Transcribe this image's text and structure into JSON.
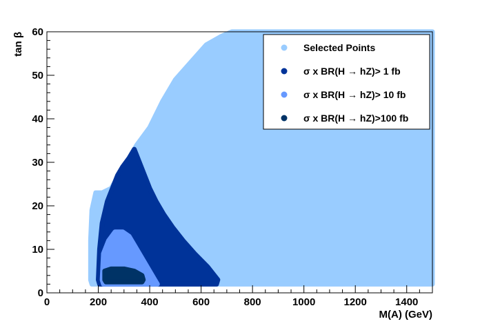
{
  "chart_data": {
    "type": "scatter",
    "xlabel": "M(A) (GeV)",
    "ylabel": "tan β",
    "xlim": [
      0,
      1500
    ],
    "ylim": [
      0,
      60
    ],
    "x_ticks": [
      "0",
      "200",
      "400",
      "600",
      "800",
      "1000",
      "1200",
      "1400"
    ],
    "y_ticks": [
      "0",
      "10",
      "20",
      "30",
      "40",
      "50",
      "60"
    ],
    "legend_position": "top-right",
    "series": [
      {
        "name": "Selected Points",
        "color": "#99ccff",
        "region_outline": [
          [
            170,
            3
          ],
          [
            170,
            12
          ],
          [
            175,
            19
          ],
          [
            190,
            23
          ],
          [
            215,
            23
          ],
          [
            250,
            24
          ],
          [
            300,
            29
          ],
          [
            350,
            34
          ],
          [
            400,
            38
          ],
          [
            450,
            44
          ],
          [
            500,
            49
          ],
          [
            560,
            53
          ],
          [
            620,
            57
          ],
          [
            680,
            59
          ],
          [
            720,
            60
          ],
          [
            1500,
            60
          ],
          [
            1500,
            2
          ],
          [
            175,
            2
          ]
        ]
      },
      {
        "name": "σ x BR(H → hZ)>  1 fb",
        "color": "#003399",
        "region_outline": [
          [
            200,
            3
          ],
          [
            205,
            10
          ],
          [
            215,
            16
          ],
          [
            235,
            21
          ],
          [
            255,
            24
          ],
          [
            275,
            27
          ],
          [
            295,
            29
          ],
          [
            320,
            31
          ],
          [
            340,
            33
          ],
          [
            360,
            30
          ],
          [
            380,
            27
          ],
          [
            400,
            24
          ],
          [
            425,
            21
          ],
          [
            455,
            18
          ],
          [
            490,
            15
          ],
          [
            530,
            12
          ],
          [
            575,
            9
          ],
          [
            625,
            6
          ],
          [
            665,
            3
          ],
          [
            660,
            2
          ],
          [
            250,
            2
          ],
          [
            205,
            2
          ]
        ]
      },
      {
        "name": "σ x BR(H → hZ)> 10 fb",
        "color": "#6699ff",
        "region_outline": [
          [
            215,
            3
          ],
          [
            220,
            9
          ],
          [
            240,
            12
          ],
          [
            265,
            14
          ],
          [
            295,
            14
          ],
          [
            320,
            13
          ],
          [
            340,
            11
          ],
          [
            360,
            9
          ],
          [
            380,
            7
          ],
          [
            400,
            5
          ],
          [
            420,
            3
          ],
          [
            430,
            2
          ],
          [
            220,
            2
          ]
        ]
      },
      {
        "name": "σ x BR(H → hZ)>100 fb",
        "color": "#003366",
        "region_outline": [
          [
            225,
            3
          ],
          [
            225,
            5
          ],
          [
            250,
            5.5
          ],
          [
            300,
            5.5
          ],
          [
            340,
            5
          ],
          [
            370,
            4
          ],
          [
            375,
            3
          ],
          [
            370,
            2.5
          ],
          [
            230,
            2.5
          ]
        ]
      }
    ]
  }
}
